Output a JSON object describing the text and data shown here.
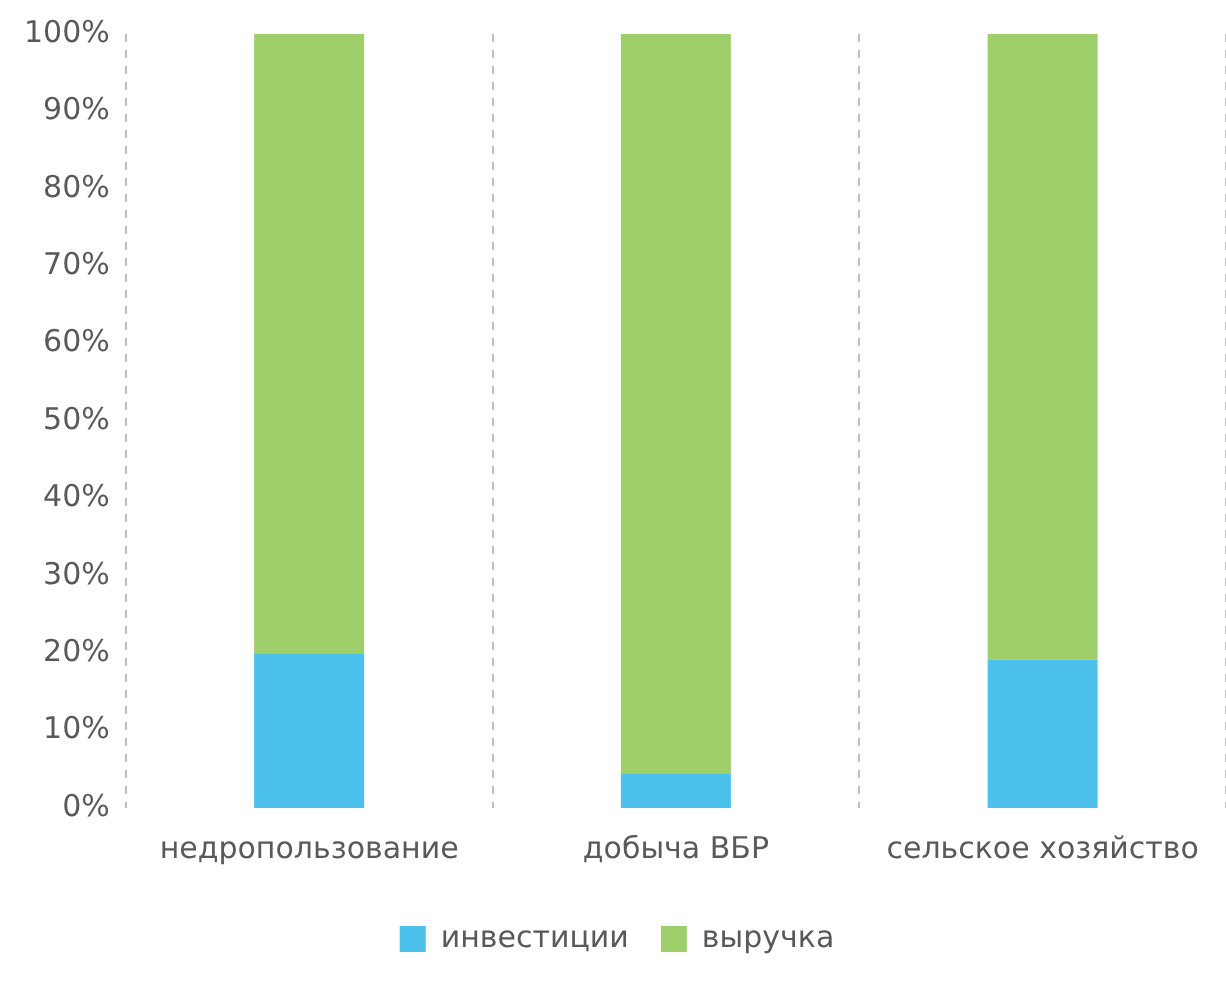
{
  "chart_data": {
    "type": "bar",
    "stacked": true,
    "categories": [
      "недропользование",
      "добыча ВБР",
      "сельское хозяйство"
    ],
    "series": [
      {
        "name": "инвестиции",
        "color": "#4bc1eb",
        "values": [
          20,
          4.5,
          19.2
        ]
      },
      {
        "name": "выручка",
        "color": "#9fcf6a",
        "values": [
          80,
          95.5,
          80.8
        ]
      }
    ],
    "ylim": [
      0,
      100
    ],
    "yticks": [
      {
        "value": 0,
        "label": "0%"
      },
      {
        "value": 10,
        "label": "10%"
      },
      {
        "value": 20,
        "label": "20%"
      },
      {
        "value": 30,
        "label": "30%"
      },
      {
        "value": 40,
        "label": "40%"
      },
      {
        "value": 50,
        "label": "50%"
      },
      {
        "value": 60,
        "label": "60%"
      },
      {
        "value": 70,
        "label": "70%"
      },
      {
        "value": 80,
        "label": "80%"
      },
      {
        "value": 90,
        "label": "90%"
      },
      {
        "value": 100,
        "label": "100%"
      }
    ],
    "grid": "x",
    "legend": "bottom"
  }
}
